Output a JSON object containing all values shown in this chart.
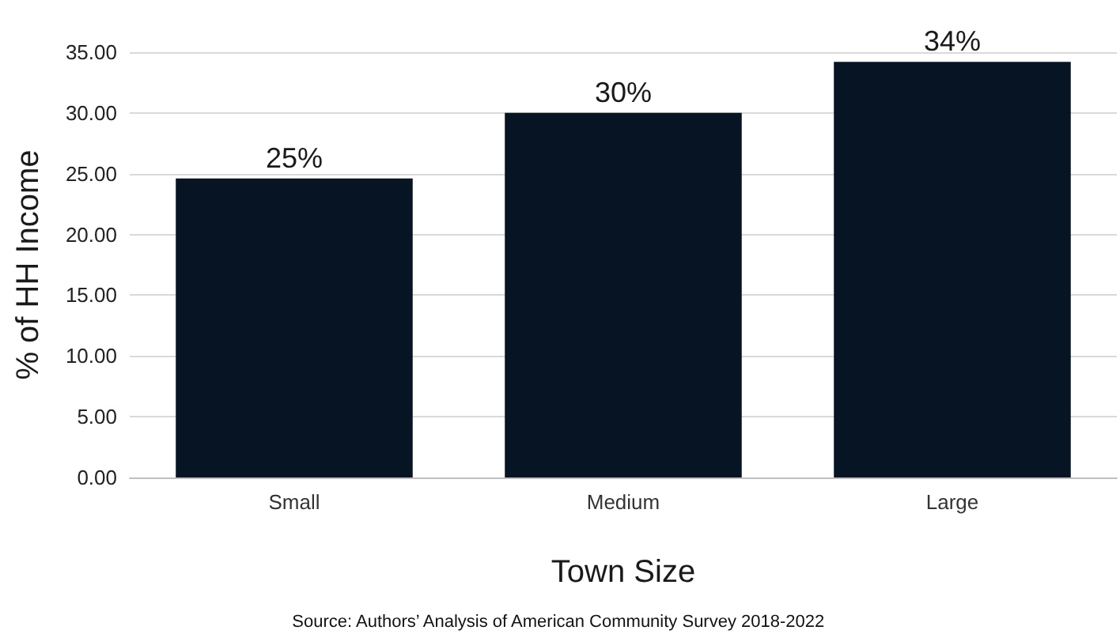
{
  "chart_data": {
    "type": "bar",
    "xlabel": "Town Size",
    "ylabel": "% of HH Income",
    "categories": [
      "Small",
      "Medium",
      "Large"
    ],
    "values": [
      24.6,
      30.0,
      34.2
    ],
    "color": "#061423",
    "value_labels": [
      "25%",
      "30%",
      "34%"
    ],
    "ylim": [
      0,
      35
    ],
    "yticks": [
      {
        "value": 0,
        "label": "0.00"
      },
      {
        "value": 5,
        "label": "5.00"
      },
      {
        "value": 10,
        "label": "10.00"
      },
      {
        "value": 15,
        "label": "15.00"
      },
      {
        "value": 20,
        "label": "20.00"
      },
      {
        "value": 25,
        "label": "25.00"
      },
      {
        "value": 30,
        "label": "30.00"
      },
      {
        "value": 35,
        "label": "35.00"
      }
    ],
    "grid": "y",
    "annotations": [
      "Source: Authors’ Analysis of American Community Survey 2018-2022"
    ]
  }
}
